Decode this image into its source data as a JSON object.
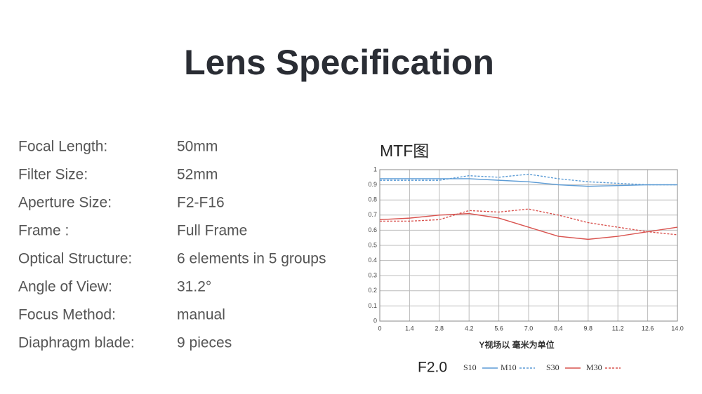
{
  "header": {
    "title": "Lens Specification"
  },
  "specs": {
    "rows": [
      [
        "Focal Length:",
        "50mm"
      ],
      [
        "Filter Size:",
        "52mm"
      ],
      [
        "Aperture Size:",
        "F2-F16"
      ],
      [
        "Frame :",
        "Full Frame"
      ],
      [
        "Optical Structure:",
        "6 elements in 5 groups"
      ],
      [
        "Angle of View:",
        "31.2°"
      ],
      [
        "Focus Method:",
        "manual"
      ],
      [
        "Diaphragm blade:",
        "9 pieces"
      ]
    ]
  },
  "chart_data": {
    "type": "line",
    "title": "MTF图",
    "x_label": "Y视场以 毫米为单位",
    "legend_title": "F2.0",
    "x": [
      0,
      1.4,
      2.8,
      4.2,
      5.6,
      7.0,
      8.4,
      9.8,
      11.2,
      12.6,
      14
    ],
    "xlim": [
      0,
      14
    ],
    "xticks": [
      0,
      1.4,
      2.8,
      4.2,
      5.6,
      {
        "value": 7,
        "label": "7.0"
      },
      8.4,
      9.8,
      11.2,
      12.6,
      {
        "value": 14,
        "label": "14.0"
      }
    ],
    "ylim": [
      0,
      1
    ],
    "yticks": [
      0,
      0.1,
      0.2,
      0.3,
      0.4,
      0.5,
      0.6,
      0.7,
      0.8,
      0.9,
      1
    ],
    "grid": true,
    "series": [
      {
        "name": "S10",
        "color": "#5b9bd5",
        "dashed": false,
        "values": [
          0.94,
          0.94,
          0.94,
          0.94,
          0.93,
          0.92,
          0.9,
          0.89,
          0.895,
          0.9,
          0.9
        ]
      },
      {
        "name": "M10",
        "color": "#5b9bd5",
        "dashed": true,
        "values": [
          0.93,
          0.93,
          0.93,
          0.96,
          0.95,
          0.97,
          0.94,
          0.92,
          0.91,
          0.9,
          0.9
        ]
      },
      {
        "name": "S30",
        "color": "#d9534f",
        "dashed": false,
        "values": [
          0.67,
          0.68,
          0.7,
          0.71,
          0.68,
          0.62,
          0.56,
          0.54,
          0.56,
          0.59,
          0.62
        ]
      },
      {
        "name": "M30",
        "color": "#d9534f",
        "dashed": true,
        "values": [
          0.66,
          0.66,
          0.67,
          0.73,
          0.72,
          0.74,
          0.7,
          0.65,
          0.62,
          0.59,
          0.57
        ]
      }
    ]
  }
}
